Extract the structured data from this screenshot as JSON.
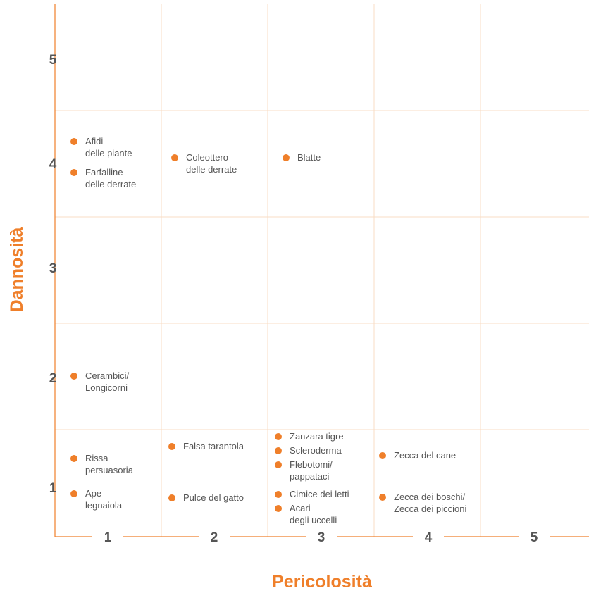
{
  "chart_data": {
    "type": "scatter",
    "xlabel": "Pericolosità",
    "ylabel": "Dannosità",
    "x_ticks": [
      "1",
      "2",
      "3",
      "4",
      "5"
    ],
    "y_ticks": [
      "1",
      "2",
      "3",
      "4",
      "5"
    ],
    "xlim": [
      1,
      5
    ],
    "ylim": [
      1,
      5
    ],
    "grid": true,
    "colors": {
      "point": "#ef7f2a",
      "grid": "#f8dcc4",
      "axis": "#ef7f2a",
      "text": "#555555"
    },
    "points": [
      {
        "label": [
          "Afidi",
          "delle piante"
        ],
        "x": 1,
        "y": 4
      },
      {
        "label": [
          "Farfalline",
          "delle derrate"
        ],
        "x": 1,
        "y": 4
      },
      {
        "label": [
          "Coleottero",
          "delle derrate"
        ],
        "x": 2,
        "y": 4
      },
      {
        "label": [
          "Blatte"
        ],
        "x": 3,
        "y": 4
      },
      {
        "label": [
          "Cerambici/",
          "Longicorni"
        ],
        "x": 1,
        "y": 2
      },
      {
        "label": [
          "Rissa",
          "persuasoria"
        ],
        "x": 1,
        "y": 1
      },
      {
        "label": [
          "Ape",
          "legnaiola"
        ],
        "x": 1,
        "y": 1
      },
      {
        "label": [
          "Falsa tarantola"
        ],
        "x": 2,
        "y": 1
      },
      {
        "label": [
          "Pulce del gatto"
        ],
        "x": 2,
        "y": 1
      },
      {
        "label": [
          "Zanzara tigre"
        ],
        "x": 3,
        "y": 1
      },
      {
        "label": [
          "Scleroderma"
        ],
        "x": 3,
        "y": 1
      },
      {
        "label": [
          "Flebotomi/",
          "pappataci"
        ],
        "x": 3,
        "y": 1
      },
      {
        "label": [
          "Cimice dei letti"
        ],
        "x": 3,
        "y": 1
      },
      {
        "label": [
          "Acari",
          "degli uccelli"
        ],
        "x": 3,
        "y": 1
      },
      {
        "label": [
          "Zecca del cane"
        ],
        "x": 4,
        "y": 1
      },
      {
        "label": [
          "Zecca dei boschi/",
          "Zecca dei piccioni"
        ],
        "x": 4,
        "y": 1
      }
    ]
  }
}
